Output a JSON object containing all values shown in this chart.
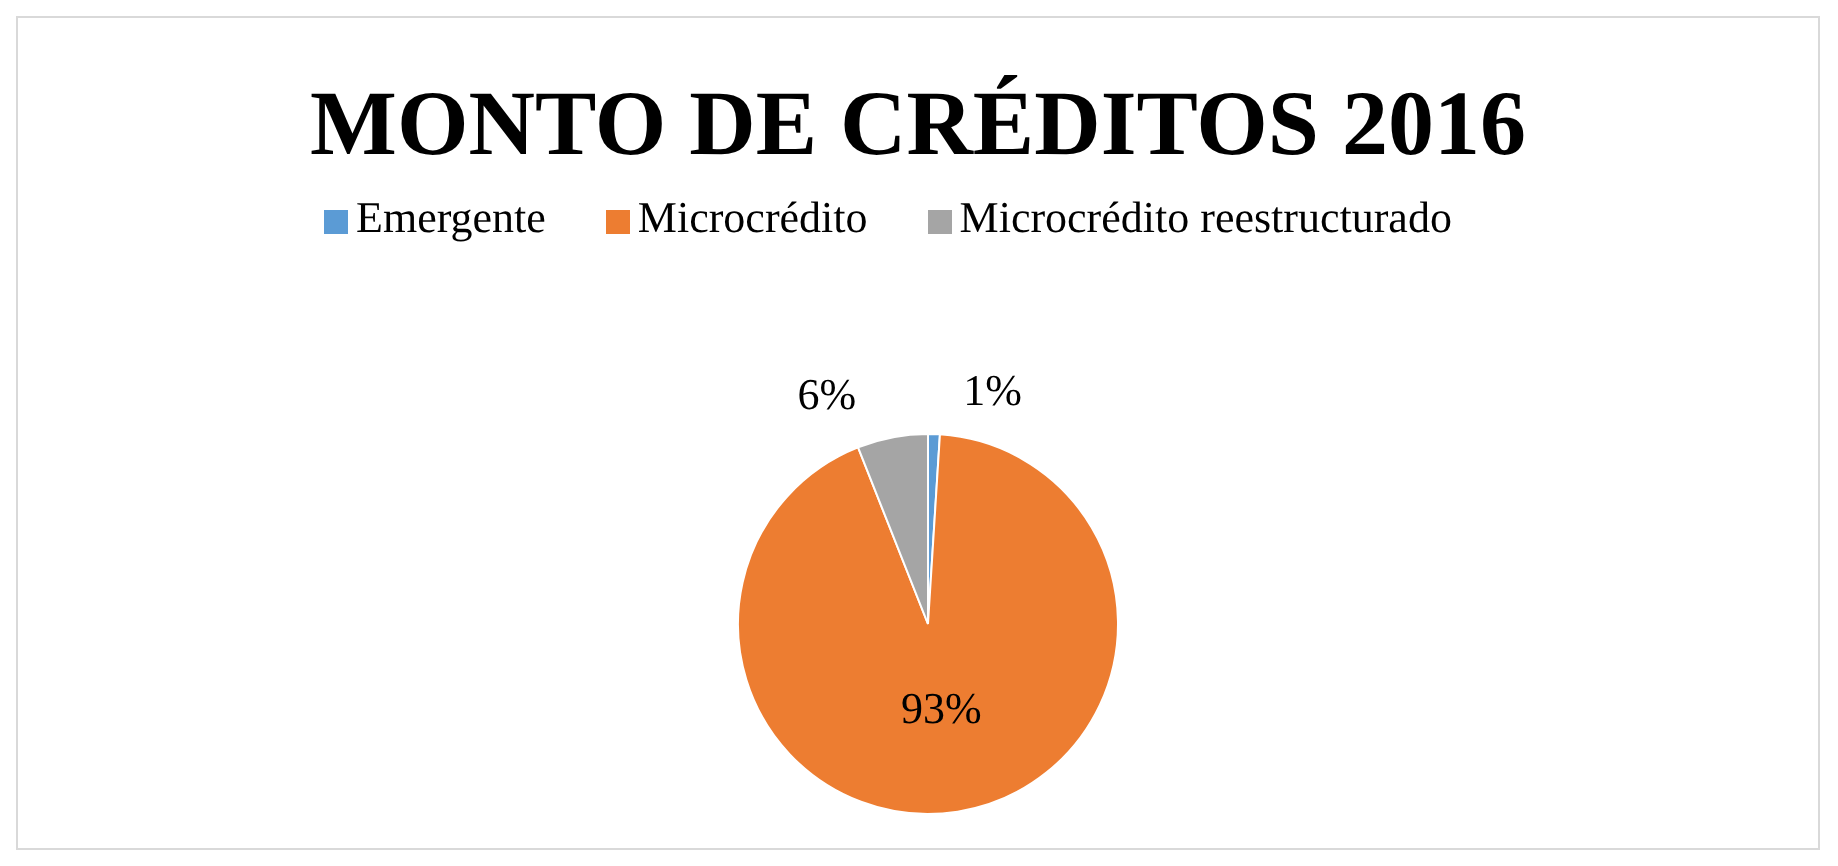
{
  "chart_data": {
    "type": "pie",
    "title": "MONTO DE CRÉDITOS 2016",
    "categories": [
      "Emergente",
      "Microcrédito",
      "Microcrédito reestructurado"
    ],
    "values": [
      1,
      93,
      6
    ],
    "colors": [
      "#5b9bd5",
      "#ed7d31",
      "#a5a5a5"
    ],
    "value_labels": [
      "1%",
      "93%",
      "6%"
    ],
    "legend": "top"
  }
}
